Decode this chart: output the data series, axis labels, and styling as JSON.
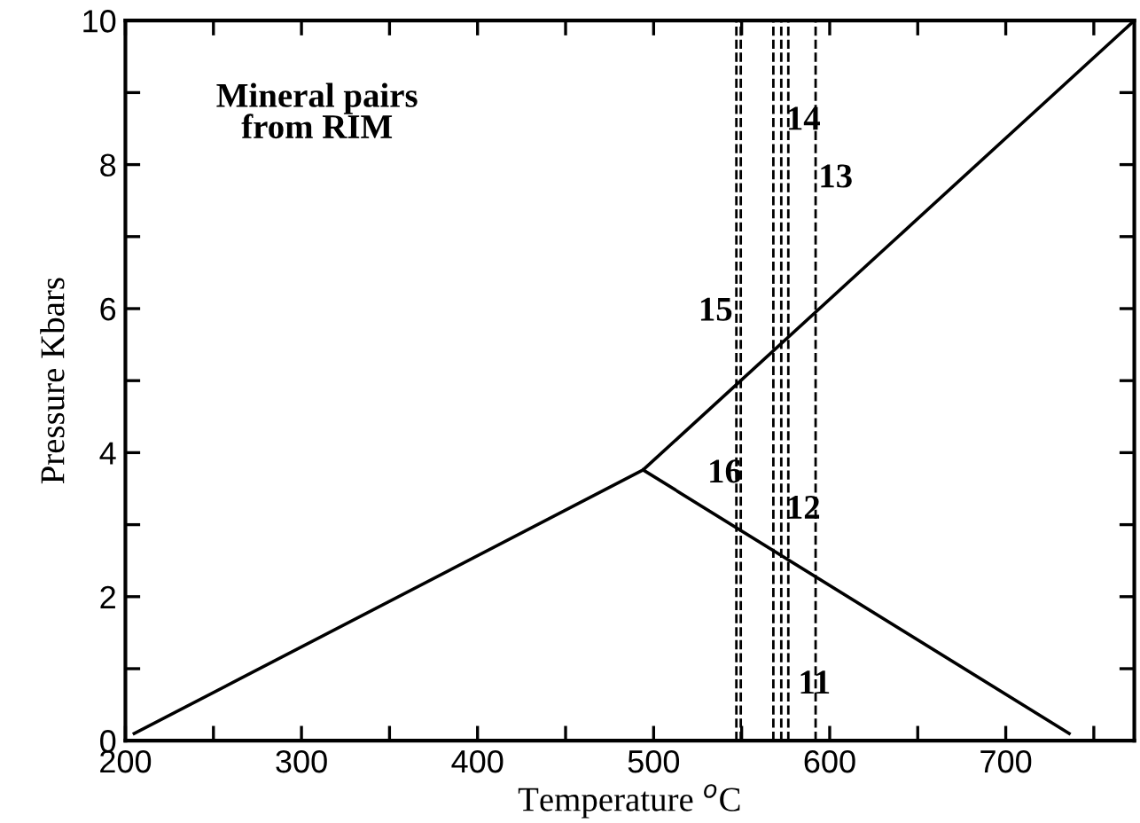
{
  "chart_data": {
    "type": "line",
    "xlabel": "Temperature $^{o}$C",
    "ylabel": "Pressure Kbars",
    "xlim": [
      200,
      773
    ],
    "ylim": [
      0,
      10
    ],
    "xticks": [
      200,
      {
        "value": 250,
        "label": null
      },
      300,
      {
        "value": 350,
        "label": null
      },
      400,
      {
        "value": 450,
        "label": null
      },
      500,
      {
        "value": 550,
        "label": null
      },
      600,
      {
        "value": 650,
        "label": null
      },
      700,
      {
        "value": 750,
        "label": null
      }
    ],
    "yticks": [
      0,
      {
        "value": 1,
        "label": null
      },
      2,
      {
        "value": 3,
        "label": null
      },
      4,
      {
        "value": 5,
        "label": null
      },
      6,
      {
        "value": 7,
        "label": null
      },
      8,
      {
        "value": 9,
        "label": null
      },
      10
    ],
    "series": [
      {
        "color": "#000000",
        "x": [
          205,
          494,
          773
        ],
        "values": [
          0.1,
          3.76,
          10
        ]
      },
      {
        "color": "#000000",
        "x": [
          494,
          736
        ],
        "values": [
          3.76,
          0.1
        ]
      }
    ],
    "ref_lines": [
      {
        "axis": "x",
        "value": 547,
        "color": "#000000",
        "line_style": "dashed"
      },
      {
        "axis": "x",
        "value": 549.5,
        "color": "#000000",
        "line_style": "dashed"
      },
      {
        "axis": "x",
        "value": 568,
        "color": "#000000",
        "line_style": "dashed"
      },
      {
        "axis": "x",
        "value": 572.5,
        "color": "#000000",
        "line_style": "dashed"
      },
      {
        "axis": "x",
        "value": 576.5,
        "color": "#000000",
        "line_style": "dashed"
      },
      {
        "axis": "x",
        "value": 592,
        "color": "#000000",
        "line_style": "dashed"
      }
    ],
    "annotations": [
      "Mineral pairs\nfrom RIM",
      "14",
      "13",
      "15",
      "16",
      "12",
      "11"
    ],
    "grid": false,
    "legend": false,
    "marker": "none",
    "line_style": "solid"
  }
}
